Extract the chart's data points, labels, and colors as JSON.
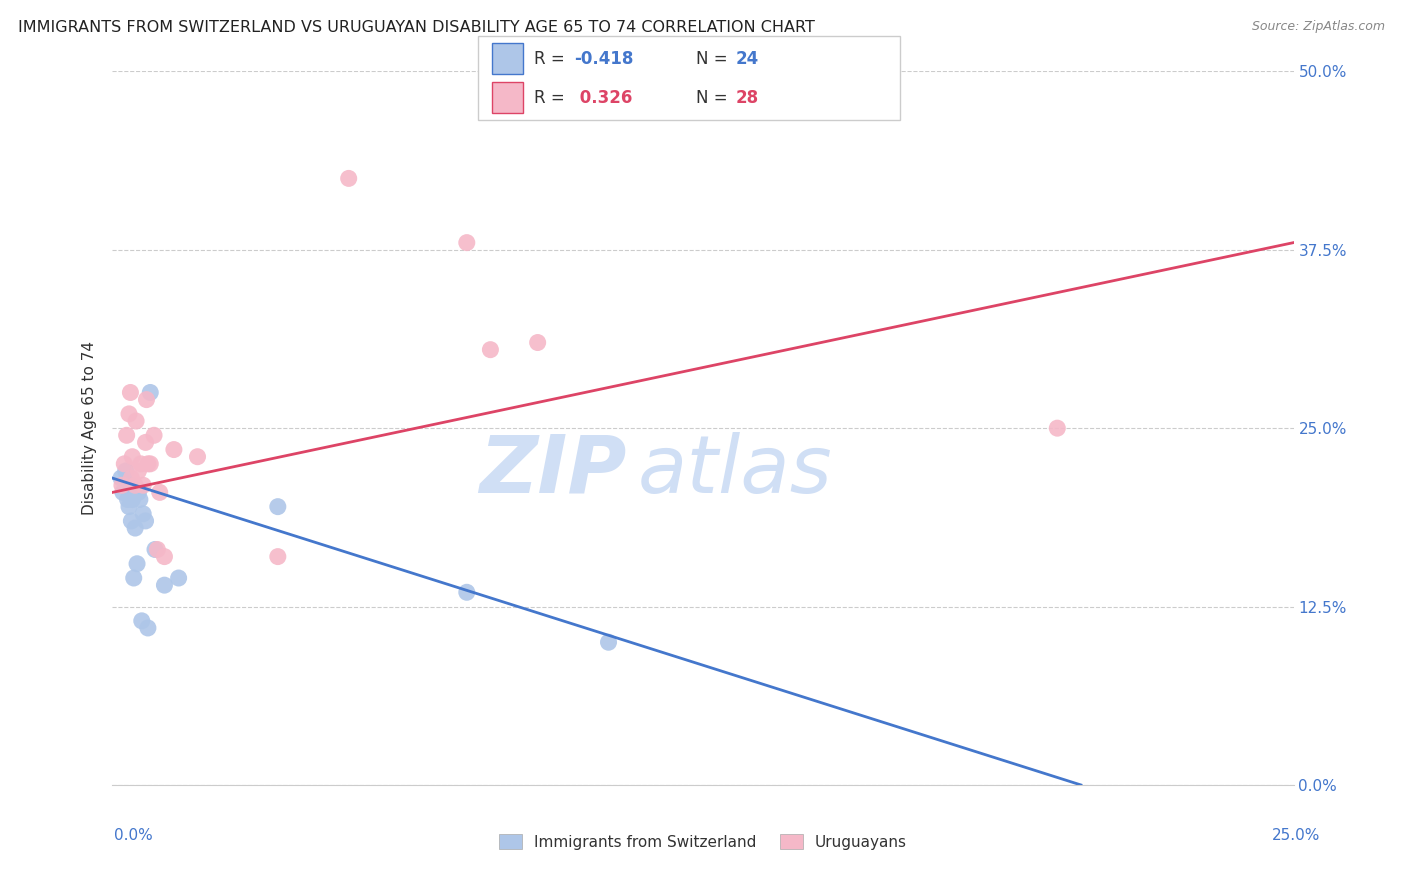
{
  "title": "IMMIGRANTS FROM SWITZERLAND VS URUGUAYAN DISABILITY AGE 65 TO 74 CORRELATION CHART",
  "source": "Source: ZipAtlas.com",
  "ylabel": "Disability Age 65 to 74",
  "ytick_labels": [
    "0.0%",
    "12.5%",
    "25.0%",
    "37.5%",
    "50.0%"
  ],
  "ytick_values": [
    0.0,
    12.5,
    25.0,
    37.5,
    50.0
  ],
  "xlim": [
    0.0,
    25.0
  ],
  "ylim": [
    0.0,
    50.0
  ],
  "blue_R": "-0.418",
  "blue_N": "24",
  "pink_R": "0.326",
  "pink_N": "28",
  "legend_label_blue": "Immigrants from Switzerland",
  "legend_label_pink": "Uruguayans",
  "blue_color": "#aec6e8",
  "pink_color": "#f5b8c8",
  "blue_line_color": "#4477cc",
  "pink_line_color": "#dd4466",
  "title_color": "#222222",
  "axis_label_color": "#4477cc",
  "watermark_color": "#d0dff5",
  "blue_scatter_x": [
    0.18,
    0.22,
    0.28,
    0.32,
    0.35,
    0.38,
    0.4,
    0.42,
    0.45,
    0.48,
    0.52,
    0.55,
    0.58,
    0.62,
    0.65,
    0.7,
    0.75,
    0.8,
    0.9,
    1.1,
    1.4,
    3.5,
    7.5,
    10.5
  ],
  "blue_scatter_y": [
    21.5,
    20.5,
    22.0,
    20.0,
    19.5,
    21.0,
    18.5,
    20.0,
    14.5,
    18.0,
    15.5,
    20.5,
    20.0,
    11.5,
    19.0,
    18.5,
    11.0,
    27.5,
    16.5,
    14.0,
    14.5,
    19.5,
    13.5,
    10.0
  ],
  "pink_scatter_x": [
    0.2,
    0.25,
    0.3,
    0.35,
    0.38,
    0.4,
    0.42,
    0.48,
    0.5,
    0.55,
    0.6,
    0.65,
    0.7,
    0.72,
    0.75,
    0.8,
    0.88,
    0.95,
    1.0,
    1.1,
    1.3,
    1.8,
    3.5,
    5.0,
    7.5,
    8.0,
    9.0,
    20.0
  ],
  "pink_scatter_y": [
    21.0,
    22.5,
    24.5,
    26.0,
    27.5,
    21.5,
    23.0,
    21.0,
    25.5,
    22.0,
    22.5,
    21.0,
    24.0,
    27.0,
    22.5,
    22.5,
    24.5,
    16.5,
    20.5,
    16.0,
    23.5,
    23.0,
    16.0,
    42.5,
    38.0,
    30.5,
    31.0,
    25.0
  ],
  "blue_trendline_x": [
    0.0,
    20.5
  ],
  "blue_trendline_y": [
    21.5,
    0.0
  ],
  "pink_trendline_x": [
    0.0,
    25.0
  ],
  "pink_trendline_y": [
    20.5,
    38.0
  ]
}
